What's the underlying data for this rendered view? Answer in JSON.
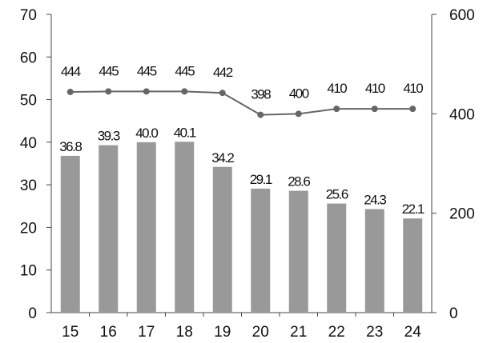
{
  "chart_data": {
    "type": "bar+line",
    "categories": [
      "15",
      "16",
      "17",
      "18",
      "19",
      "20",
      "21",
      "22",
      "23",
      "24"
    ],
    "series": [
      {
        "type": "bar",
        "axis": "left",
        "color": "#999999",
        "values": [
          36.8,
          39.3,
          40.0,
          40.1,
          34.2,
          29.1,
          28.6,
          25.6,
          24.3,
          22.1
        ],
        "labels": [
          "36.8",
          "39.3",
          "40.0",
          "40.1",
          "34.2",
          "29.1",
          "28.6",
          "25.6",
          "24.3",
          "22.1"
        ]
      },
      {
        "type": "line",
        "axis": "right",
        "color": "#666666",
        "values": [
          444,
          445,
          445,
          445,
          442,
          398,
          400,
          410,
          410,
          410
        ],
        "labels": [
          "444",
          "445",
          "445",
          "445",
          "442",
          "398",
          "400",
          "410",
          "410",
          "410"
        ]
      }
    ],
    "y_left": {
      "min": 0,
      "max": 70,
      "ticks": [
        "0",
        "10",
        "20",
        "30",
        "40",
        "50",
        "60",
        "70"
      ]
    },
    "y_right": {
      "min": 0,
      "max": 600,
      "ticks": [
        "0",
        "200",
        "400",
        "600"
      ]
    },
    "title": "",
    "xlabel": "",
    "ylabel": "",
    "grid": false,
    "legend": "none"
  }
}
